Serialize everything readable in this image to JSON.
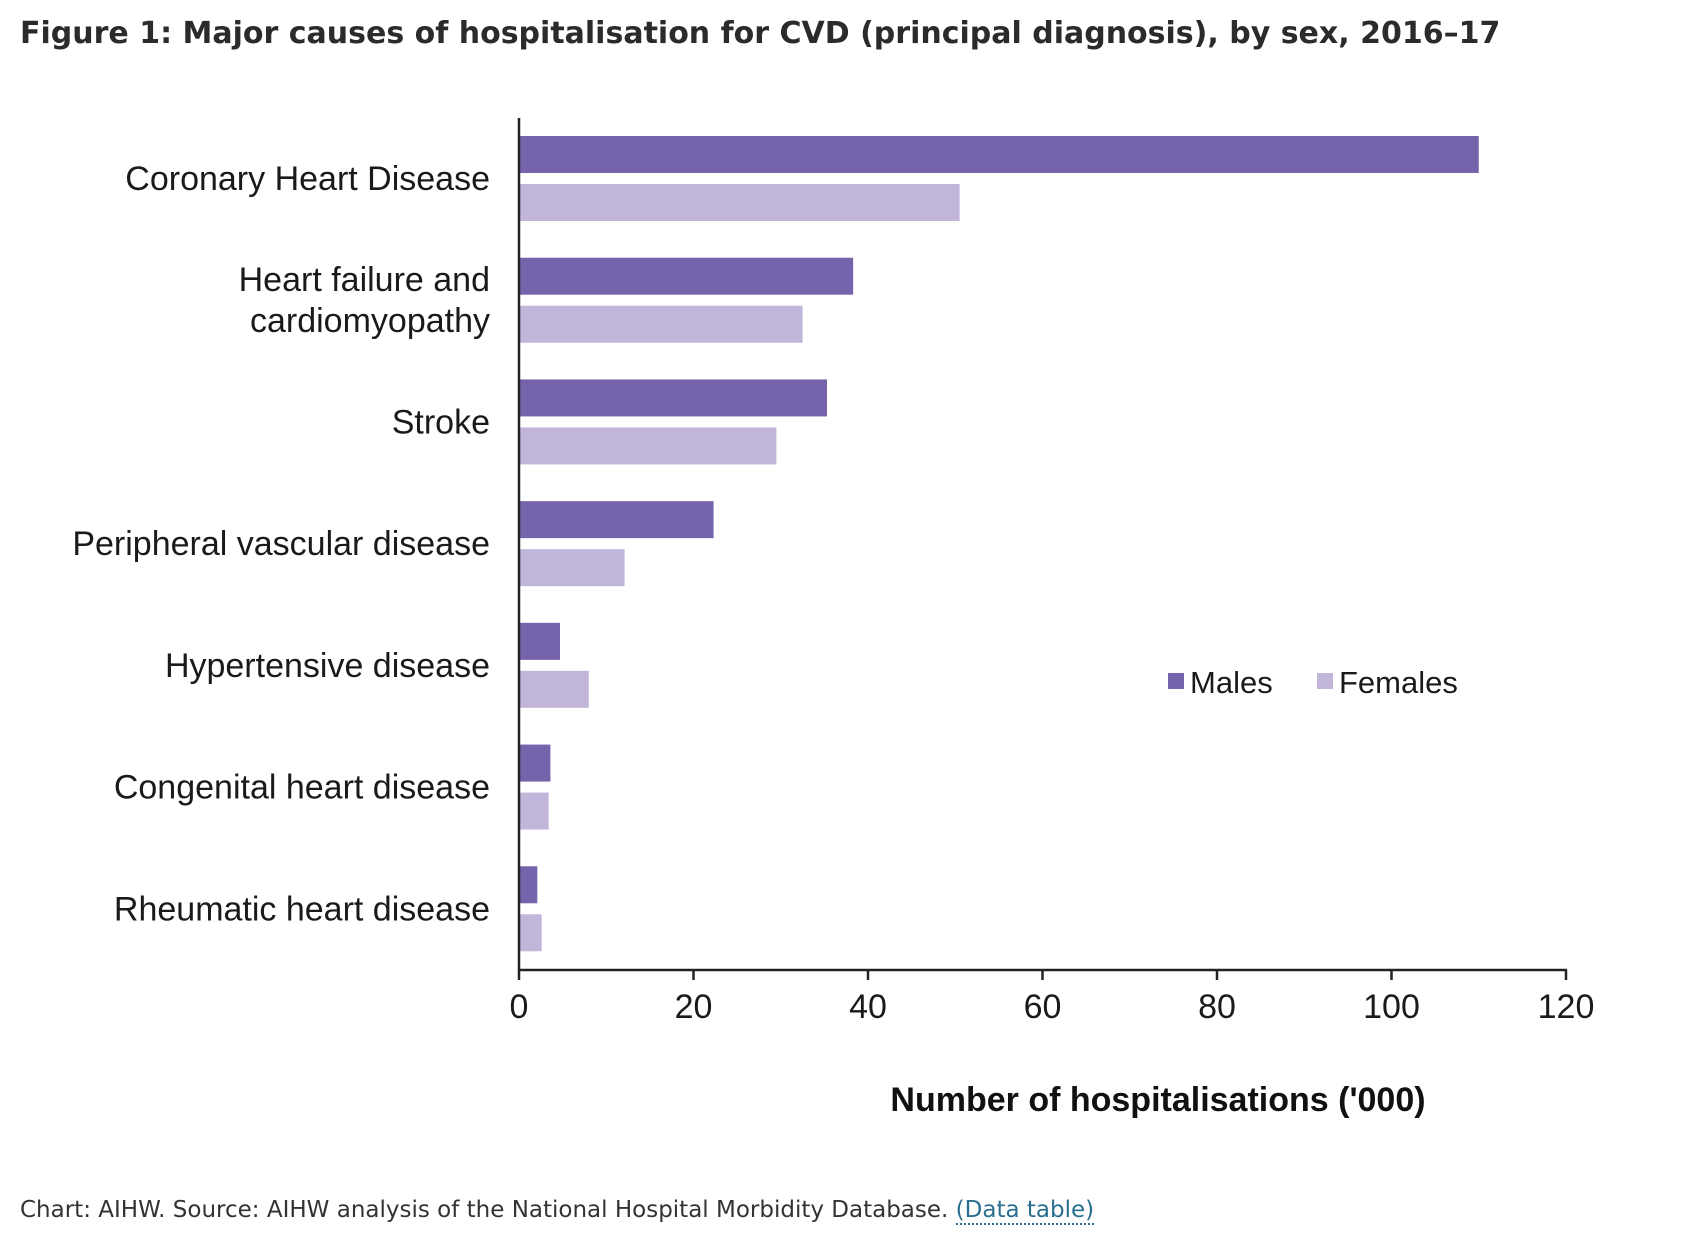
{
  "figure_title": "Figure 1: Major causes of hospitalisation for CVD (principal diagnosis), by sex, 2016–17",
  "caption": {
    "text": "Chart: AIHW. Source: AIHW analysis of the National Hospital Morbidity Database.",
    "link_label": "(Data table)"
  },
  "chart_data": {
    "type": "bar",
    "orientation": "horizontal",
    "categories": [
      [
        "Coronary Heart Disease"
      ],
      [
        "Heart failure and",
        "cardiomyopathy"
      ],
      [
        "Stroke"
      ],
      [
        "Peripheral vascular disease"
      ],
      [
        "Hypertensive disease"
      ],
      [
        "Congenital heart disease"
      ],
      [
        "Rheumatic heart disease"
      ]
    ],
    "series": [
      {
        "name": "Males",
        "color": "#7563ab",
        "values": [
          110.0,
          38.3,
          35.3,
          22.3,
          4.7,
          3.6,
          2.1
        ]
      },
      {
        "name": "Females",
        "color": "#c1b5da",
        "values": [
          50.5,
          32.5,
          29.5,
          12.1,
          8.0,
          3.4,
          2.6
        ]
      }
    ],
    "xlabel": "Number of hospitalisations ('000)",
    "xlim": [
      0,
      120
    ],
    "xticks": [
      0,
      20,
      40,
      60,
      80,
      100,
      120
    ],
    "grid": false,
    "legend_position": "right-middle"
  }
}
